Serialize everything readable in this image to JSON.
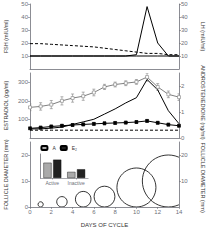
{
  "chart_data": [
    {
      "type": "line",
      "x": [
        0,
        1,
        2,
        3,
        4,
        5,
        6,
        7,
        8,
        9,
        10,
        11,
        12,
        13,
        14
      ],
      "xlim": [
        0,
        14
      ],
      "ylim": [
        0,
        50
      ],
      "yticks": [
        10,
        20,
        30,
        40,
        50
      ],
      "y2lim": [
        0,
        50
      ],
      "y2ticks": [
        10,
        20,
        30,
        40,
        50
      ],
      "ylabel": "FSH (mIU/ml)",
      "y2label": "LH (mIU/ml)",
      "grid": false,
      "tick_labels": "y",
      "series": [
        {
          "axis": "y2",
          "color": "#000000",
          "line_style": "solid",
          "values": [
            10,
            10,
            10,
            10,
            10,
            10,
            10,
            10,
            10,
            10,
            11,
            48,
            20,
            10,
            10
          ]
        },
        {
          "color": "#000000",
          "line_style": "dashed",
          "values": [
            19.5,
            19.5,
            19,
            18.5,
            18,
            17.5,
            17,
            16,
            15,
            14,
            13,
            12,
            12,
            11,
            11
          ]
        },
        {
          "color": "#000000",
          "line_style": "solid",
          "values": [
            10,
            10,
            10,
            10,
            10,
            10,
            10,
            10,
            10,
            10,
            10,
            10,
            10,
            10,
            10
          ]
        }
      ]
    },
    {
      "type": "line",
      "x": [
        0,
        1,
        2,
        3,
        4,
        5,
        6,
        7,
        8,
        9,
        10,
        11,
        12,
        13,
        14
      ],
      "xlim": [
        0,
        14
      ],
      "ylim": [
        0,
        350
      ],
      "yticks": [
        100,
        200,
        300
      ],
      "y2lim": [
        0,
        2.5
      ],
      "y2ticks": [
        0,
        1,
        2
      ],
      "ylabel": "ESTRADIOL (pg/ml)",
      "y2label": "ANDROSTENEDIONE (ng/ml)",
      "grid": false,
      "tick_labels": "y",
      "series": [
        {
          "color": "#808080",
          "marker": "open_square",
          "line_style": "solid",
          "values": [
            165,
            170,
            180,
            200,
            215,
            225,
            245,
            275,
            288,
            295,
            302,
            328,
            275,
            235,
            220
          ],
          "errors": [
            18,
            20,
            22,
            22,
            22,
            22,
            18,
            14,
            13,
            13,
            13,
            22,
            18,
            18,
            18
          ]
        },
        {
          "color": "#000000",
          "marker": "square",
          "line_style": "solid",
          "values": [
            52,
            56,
            62,
            66,
            70,
            73,
            76,
            79,
            81,
            83,
            86,
            92,
            82,
            72,
            66
          ],
          "errors": [
            7,
            7,
            7,
            7,
            7,
            7,
            7,
            7,
            7,
            7,
            7,
            7,
            7,
            7,
            7
          ]
        },
        {
          "axis": "y2",
          "color": "#000000",
          "line_style": "solid",
          "values": [
            0.35,
            0.35,
            0.38,
            0.42,
            0.52,
            0.62,
            0.72,
            0.92,
            1.12,
            1.35,
            1.55,
            2.25,
            1.85,
            1.05,
            0.55
          ]
        },
        {
          "axis": "y2",
          "color": "#000000",
          "line_style": "dashed",
          "values": [
            0.3,
            0.3,
            0.3,
            0.3,
            0.3,
            0.3,
            0.3,
            0.3,
            0.3,
            0.3,
            0.3,
            0.3,
            0.3,
            0.3,
            0.3
          ]
        }
      ]
    },
    {
      "type": "circles",
      "x": [
        1,
        3,
        5,
        7,
        10,
        13
      ],
      "values": [
        2,
        4,
        6,
        8,
        15,
        20
      ],
      "color": "#000000",
      "xlim": [
        0,
        14
      ],
      "xticks": [
        0,
        2,
        4,
        6,
        8,
        10,
        12,
        14
      ],
      "ylim": [
        0,
        25
      ],
      "yticks": [
        0,
        10,
        20
      ],
      "y2lim": [
        0,
        25
      ],
      "y2ticks": [
        10,
        20
      ],
      "xlabel": "DAYS OF CYCLE",
      "ylabel": "FOLLICLE DIAMETER (mm)",
      "y2label": "FOLLICLE DIAMETER (mm)",
      "grid": false
    },
    {
      "type": "bar",
      "categories": [
        "Active",
        "Inactive"
      ],
      "series": [
        {
          "name": "A",
          "color": "#aaaaaa",
          "values": [
            3.5,
            1.4
          ]
        },
        {
          "name": "E₂",
          "color": "#222222",
          "values": [
            4.2,
            2.0
          ]
        }
      ],
      "ylim": [
        0,
        5.5
      ],
      "tick_labels": "x",
      "legend": "upper left",
      "grid": false
    }
  ]
}
